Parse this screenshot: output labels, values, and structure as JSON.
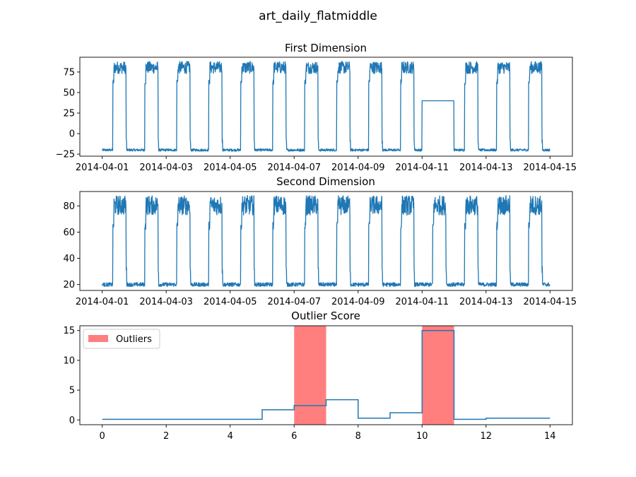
{
  "figure": {
    "title": "art_daily_flatmiddle"
  },
  "colors": {
    "series": "#1f77b4",
    "outliers": "#ff0000",
    "axes": "#000000"
  },
  "chart_data": [
    {
      "type": "line",
      "title": "First Dimension",
      "x_axis": {
        "kind": "date",
        "range": [
          "2014-04-01",
          "2014-04-15"
        ]
      },
      "xticks": [
        "2014-04-01",
        "2014-04-03",
        "2014-04-05",
        "2014-04-07",
        "2014-04-09",
        "2014-04-11",
        "2014-04-13",
        "2014-04-15"
      ],
      "yticks": [
        -25,
        0,
        25,
        50,
        75
      ],
      "ylim": [
        -27.5,
        93
      ],
      "pattern": {
        "days": [
          "2014-04-01",
          "2014-04-02",
          "2014-04-03",
          "2014-04-04",
          "2014-04-05",
          "2014-04-06",
          "2014-04-07",
          "2014-04-08",
          "2014-04-09",
          "2014-04-10",
          "2014-04-11",
          "2014-04-12",
          "2014-04-13",
          "2014-04-14"
        ],
        "low": -20,
        "low_noise": 1.5,
        "high_ramp_start": 60,
        "high_plateau_min": 73,
        "high_plateau_max": 88,
        "high_start_hour": 8,
        "high_end_hour": 18
      },
      "anomaly": {
        "start": "2014-04-11T00:00",
        "end": "2014-04-12T00:00",
        "value": 40
      },
      "grid": false
    },
    {
      "type": "line",
      "title": "Second Dimension",
      "x_axis": {
        "kind": "date",
        "range": [
          "2014-04-01",
          "2014-04-15"
        ]
      },
      "xticks": [
        "2014-04-01",
        "2014-04-03",
        "2014-04-05",
        "2014-04-07",
        "2014-04-09",
        "2014-04-11",
        "2014-04-13",
        "2014-04-15"
      ],
      "yticks": [
        20,
        40,
        60,
        80
      ],
      "ylim": [
        15.5,
        91
      ],
      "pattern": {
        "days": [
          "2014-04-01",
          "2014-04-02",
          "2014-04-03",
          "2014-04-04",
          "2014-04-05",
          "2014-04-06",
          "2014-04-07",
          "2014-04-08",
          "2014-04-09",
          "2014-04-10",
          "2014-04-11",
          "2014-04-12",
          "2014-04-13",
          "2014-04-14"
        ],
        "low": 20,
        "low_noise": 1.5,
        "high_ramp_start": 62,
        "high_plateau_min": 73,
        "high_plateau_max": 88,
        "high_start_hour": 8,
        "high_end_hour": 18
      },
      "grid": false
    },
    {
      "type": "line",
      "title": "Outlier Score",
      "xticks": [
        0,
        2,
        4,
        6,
        8,
        10,
        12,
        14
      ],
      "yticks": [
        0,
        5,
        10,
        15
      ],
      "xlim": [
        -0.7,
        14.7
      ],
      "ylim": [
        -0.8,
        15.8
      ],
      "steps": [
        {
          "x0": 0,
          "x1": 5,
          "y": 0.1
        },
        {
          "x0": 5,
          "x1": 6,
          "y": 1.7
        },
        {
          "x0": 6,
          "x1": 7,
          "y": 2.4
        },
        {
          "x0": 7,
          "x1": 8,
          "y": 3.4
        },
        {
          "x0": 8,
          "x1": 9,
          "y": 0.3
        },
        {
          "x0": 9,
          "x1": 10,
          "y": 1.2
        },
        {
          "x0": 10,
          "x1": 11,
          "y": 15.0
        },
        {
          "x0": 11,
          "x1": 12,
          "y": 0.1
        },
        {
          "x0": 12,
          "x1": 14,
          "y": 0.3
        }
      ],
      "outlier_spans": [
        {
          "x0": 6,
          "x1": 7
        },
        {
          "x0": 10,
          "x1": 11
        }
      ],
      "legend": {
        "label": "Outliers",
        "position": "upper-left"
      },
      "grid": false
    }
  ]
}
